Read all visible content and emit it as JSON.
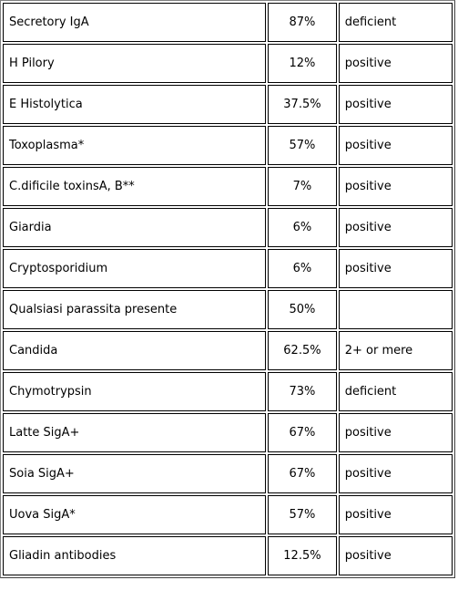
{
  "table": {
    "rows": [
      {
        "name": "Secretory IgA",
        "percent": "87%",
        "result": "deficient"
      },
      {
        "name": "H Pilory",
        "percent": "12%",
        "result": "positive"
      },
      {
        "name": "E Histolytica",
        "percent": "37.5%",
        "result": "positive"
      },
      {
        "name": "Toxoplasma*",
        "percent": "57%",
        "result": "positive"
      },
      {
        "name": "C.dificile toxinsA, B**",
        "percent": "7%",
        "result": "positive"
      },
      {
        "name": "Giardia",
        "percent": "6%",
        "result": "positive"
      },
      {
        "name": "Cryptosporidium",
        "percent": "6%",
        "result": "positive"
      },
      {
        "name": "Qualsiasi parassita presente",
        "percent": "50%",
        "result": ""
      },
      {
        "name": "Candida",
        "percent": "62.5%",
        "result": "2+ or mere"
      },
      {
        "name": "Chymotrypsin",
        "percent": "73%",
        "result": "deficient"
      },
      {
        "name": "Latte SigA+",
        "percent": "67%",
        "result": "positive"
      },
      {
        "name": "Soia SigA+",
        "percent": "67%",
        "result": "positive"
      },
      {
        "name": "Uova SigA*",
        "percent": "57%",
        "result": "positive"
      },
      {
        "name": "Gliadin antibodies",
        "percent": "12.5%",
        "result": "positive"
      }
    ]
  }
}
